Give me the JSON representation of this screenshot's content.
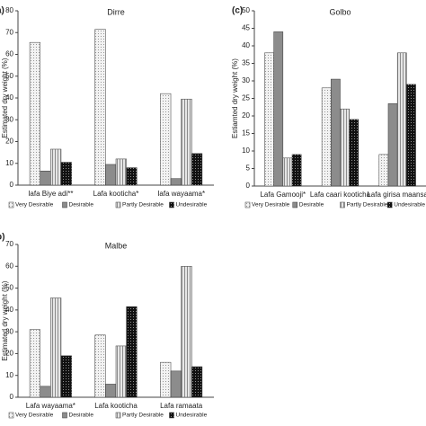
{
  "chart_data": [
    {
      "type": "bar",
      "panel": "a)",
      "title": "Dirre",
      "y_label": "Estimated dry weight (%)",
      "categories": [
        "Iafa Biye adi**",
        "Lafa kooticha*",
        "Iafa wayaama*"
      ],
      "series": [
        {
          "name": "Very Desirable",
          "color": "#f2f2f2",
          "values": [
            65.5,
            71.5,
            42
          ]
        },
        {
          "name": "Desirable",
          "color": "#8c8c8c",
          "values": [
            6.5,
            9.5,
            3
          ]
        },
        {
          "name": "Partly Desirable",
          "color": "#e6e6e6",
          "values": [
            16.5,
            12,
            39.5
          ]
        },
        {
          "name": "Undesirable",
          "color": "#111111",
          "values": [
            10.5,
            8,
            14.5
          ]
        }
      ],
      "ylim": [
        0,
        80
      ],
      "yticks": [
        0,
        10,
        20,
        30,
        40,
        50,
        60,
        70,
        80
      ]
    },
    {
      "type": "bar",
      "panel": "(c)",
      "title": "Golbo",
      "y_label": "Estiamted dry weight (%)",
      "categories": [
        "Lafa Gamooji*",
        "Lafa caari kooticha",
        "Lafa girisa maansa"
      ],
      "series": [
        {
          "name": "Very Desirable",
          "color": "#f2f2f2",
          "values": [
            38,
            28,
            9
          ]
        },
        {
          "name": "Desirable",
          "color": "#8c8c8c",
          "values": [
            44,
            30.5,
            23.5
          ]
        },
        {
          "name": "Partly Desirable",
          "color": "#e6e6e6",
          "values": [
            8,
            22,
            38
          ]
        },
        {
          "name": "Undesirable",
          "color": "#111111",
          "values": [
            9,
            19,
            29
          ]
        }
      ],
      "ylim": [
        0,
        50
      ],
      "yticks": [
        0,
        5,
        10,
        15,
        20,
        25,
        30,
        35,
        40,
        45,
        50
      ]
    },
    {
      "type": "bar",
      "panel": "b)",
      "title": "Malbe",
      "y_label": "Estimated dry weight (%)",
      "categories": [
        "Lafa wayaama*",
        "Lafa kooticha",
        "Lafa ramaata"
      ],
      "series": [
        {
          "name": "Very Desirable",
          "color": "#f2f2f2",
          "values": [
            31,
            28.5,
            16
          ]
        },
        {
          "name": "Desirable",
          "color": "#8c8c8c",
          "values": [
            5,
            6,
            12
          ]
        },
        {
          "name": "Partly Desirable",
          "color": "#e6e6e6",
          "values": [
            45.5,
            23.5,
            60
          ]
        },
        {
          "name": "Undesirable",
          "color": "#111111",
          "values": [
            19,
            41.5,
            14
          ]
        }
      ],
      "ylim": [
        0,
        70
      ],
      "yticks": [
        0,
        10,
        20,
        30,
        40,
        50,
        60,
        70
      ]
    }
  ]
}
